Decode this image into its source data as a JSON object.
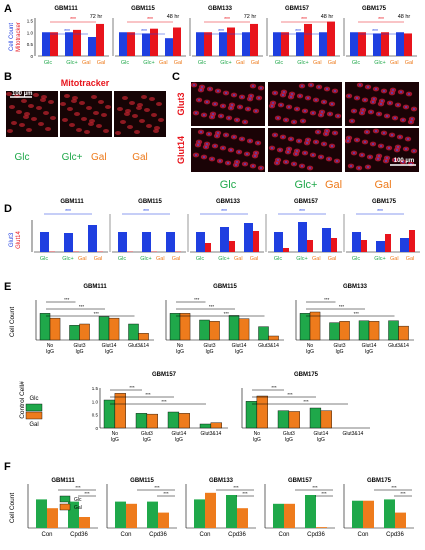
{
  "figure": {
    "colors": {
      "blue": "#1f3fe0",
      "red": "#e8141c",
      "green": "#1fa84a",
      "orange": "#ee7b1c",
      "tick_star_blue": "#2233cc",
      "tick_star_red": "#e01a1a"
    },
    "panel_letters": [
      "A",
      "B",
      "C",
      "D",
      "E",
      "F"
    ]
  },
  "panelA": {
    "ylabel_top": "Mitotracker",
    "ylabel_bottom": "Cell Count",
    "yticks": [
      "0",
      "0.5",
      "1.0",
      "1.5"
    ],
    "groups": [
      {
        "title": "GBM111",
        "time": "72 hr",
        "blue": [
          1.0,
          1.0,
          0.8
        ],
        "red": [
          1.0,
          1.1,
          1.35
        ]
      },
      {
        "title": "GBM115",
        "time": "48 hr",
        "blue": [
          1.0,
          0.95,
          0.75
        ],
        "red": [
          1.0,
          1.15,
          1.2
        ]
      },
      {
        "title": "GBM133",
        "time": "72 hr",
        "blue": [
          1.0,
          1.0,
          1.0
        ],
        "red": [
          1.0,
          1.2,
          1.35
        ]
      },
      {
        "title": "GBM157",
        "time": "48 hr",
        "blue": [
          1.0,
          1.0,
          1.0
        ],
        "red": [
          1.0,
          1.35,
          1.45
        ]
      },
      {
        "title": "GBM175",
        "time": "48 hr",
        "blue": [
          1.0,
          0.95,
          1.0
        ],
        "red": [
          1.0,
          1.0,
          0.95
        ]
      }
    ],
    "xlabels": [
      "Glc",
      "Glc+Gal",
      "Gal"
    ]
  },
  "panelB": {
    "title": "Mitotracker",
    "scale": "100 µm",
    "labels": [
      "Glc",
      "Glc+",
      "Gal",
      "Gal"
    ]
  },
  "panelC": {
    "rows": [
      "Glut3",
      "Glut14"
    ],
    "cols": [
      "Glc",
      "Glc+",
      "Gal",
      "Gal"
    ],
    "scale": "100 µm"
  },
  "panelD": {
    "ylabel_top": "Glut3",
    "ylabel_bottom": "Glut14",
    "groups": [
      {
        "title": "GBM111",
        "blue": [
          1.0,
          0.95,
          1.35
        ],
        "red": [
          0.02,
          0.02,
          0.02
        ]
      },
      {
        "title": "GBM115",
        "blue": [
          1.0,
          1.0,
          1.0
        ],
        "red": [
          0.02,
          0.02,
          0.02
        ]
      },
      {
        "title": "GBM133",
        "blue": [
          1.0,
          1.25,
          1.45
        ],
        "red": [
          0.45,
          0.55,
          1.05
        ]
      },
      {
        "title": "GBM157",
        "blue": [
          1.0,
          1.5,
          1.2
        ],
        "red": [
          0.2,
          0.6,
          0.7
        ]
      },
      {
        "title": "GBM175",
        "blue": [
          1.0,
          0.55,
          0.7
        ],
        "red": [
          0.6,
          0.9,
          1.1
        ]
      }
    ],
    "xlabels": [
      "Glc",
      "Glc+Gal",
      "Gal"
    ]
  },
  "panelE": {
    "ylabel_top": "Cell Count",
    "ylabel_bottom": "Control Cell#",
    "yticks": [
      "0",
      "0.5",
      "1.0",
      "1.5"
    ],
    "legend": [
      "Glc",
      "Gal"
    ],
    "top_groups": [
      {
        "title": "GBM111",
        "green": [
          1.0,
          0.55,
          0.88,
          0.6
        ],
        "orange": [
          0.82,
          0.6,
          0.82,
          0.25
        ]
      },
      {
        "title": "GBM115",
        "green": [
          1.0,
          0.75,
          0.92,
          0.5
        ],
        "orange": [
          1.0,
          0.7,
          0.8,
          0.15
        ]
      },
      {
        "title": "GBM133",
        "green": [
          1.0,
          0.65,
          0.72,
          0.72
        ],
        "orange": [
          1.05,
          0.7,
          0.7,
          0.52
        ]
      }
    ],
    "bottom_groups": [
      {
        "title": "GBM157",
        "green": [
          1.05,
          0.55,
          0.6,
          0.15
        ],
        "orange": [
          1.3,
          0.52,
          0.55,
          0.2
        ]
      },
      {
        "title": "GBM175",
        "green": [
          1.0,
          0.65,
          0.75,
          0.0
        ],
        "orange": [
          1.2,
          0.62,
          0.65,
          0.0
        ]
      }
    ],
    "xlabels": [
      "No IgG",
      "Glut3 IgG",
      "Glut14 IgG",
      "Glut3&14"
    ]
  },
  "panelF": {
    "ylabel": "Cell Count",
    "legend": [
      "Glc",
      "Gal"
    ],
    "groups": [
      {
        "title": "GBM111",
        "green": [
          0.65,
          0.6
        ],
        "orange": [
          0.45,
          0.25
        ]
      },
      {
        "title": "GBM115",
        "green": [
          0.6,
          0.6
        ],
        "orange": [
          0.55,
          0.35
        ]
      },
      {
        "title": "GBM133",
        "green": [
          0.65,
          0.75
        ],
        "orange": [
          0.8,
          0.45
        ]
      },
      {
        "title": "GBM157",
        "green": [
          0.55,
          0.75
        ],
        "orange": [
          0.55,
          0.02
        ]
      },
      {
        "title": "GBM175",
        "green": [
          0.62,
          0.65
        ],
        "orange": [
          0.62,
          0.35
        ]
      }
    ],
    "xlabels": [
      "Con",
      "Cpd36"
    ],
    "sig": "***"
  },
  "chart_data": [
    {
      "type": "bar",
      "title": "A",
      "series": [
        {
          "name": "Mitotracker",
          "values": [
            1.0,
            1.1,
            1.35
          ]
        },
        {
          "name": "Cell Count",
          "values": [
            1.0,
            1.0,
            0.8
          ]
        }
      ],
      "categories": [
        "Glc",
        "Glc+Gal",
        "Gal"
      ]
    },
    {
      "type": "bar",
      "title": "E",
      "categories": [
        "No IgG",
        "Glut3 IgG",
        "Glut14 IgG",
        "Glut3&14"
      ]
    },
    {
      "type": "bar",
      "title": "F",
      "categories": [
        "Con",
        "Cpd36"
      ]
    }
  ]
}
